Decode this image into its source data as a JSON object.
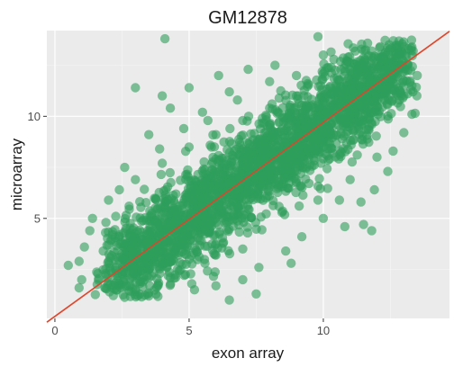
{
  "chart_data": {
    "type": "scatter",
    "title": "GM12878",
    "xlabel": "exon array",
    "ylabel": "microarray",
    "xlim": [
      -0.3,
      14.7
    ],
    "ylim": [
      0.1,
      14.2
    ],
    "x_ticks": [
      0,
      5,
      10
    ],
    "y_ticks": [
      5,
      10
    ],
    "x_tick_labels": [
      "0",
      "5",
      "10"
    ],
    "y_tick_labels": [
      "5",
      "10"
    ],
    "grid": true,
    "background": "#ebebeb",
    "point_color": "#2e9e5b",
    "line_color": "#e0452b",
    "fit_line": {
      "intercept": 0.2,
      "slope": 0.95
    },
    "series": [
      {
        "points": [
          [
            4.1,
            13.8
          ],
          [
            9.8,
            13.9
          ],
          [
            13.3,
            13.4
          ],
          [
            12.9,
            13.2
          ],
          [
            12.2,
            12.9
          ],
          [
            11.5,
            12.6
          ],
          [
            10.8,
            12.2
          ],
          [
            9.9,
            11.5
          ],
          [
            9.0,
            11.0
          ],
          [
            8.0,
            10.4
          ],
          [
            7.0,
            9.8
          ],
          [
            6.0,
            9.1
          ],
          [
            5.0,
            8.5
          ],
          [
            4.0,
            7.7
          ],
          [
            3.0,
            6.9
          ],
          [
            2.4,
            6.4
          ],
          [
            2.0,
            5.9
          ],
          [
            1.4,
            5.0
          ],
          [
            1.9,
            4.8
          ],
          [
            1.3,
            4.4
          ],
          [
            1.1,
            3.6
          ],
          [
            0.9,
            2.9
          ],
          [
            1.8,
            3.4
          ],
          [
            2.3,
            3.1
          ],
          [
            2.6,
            2.7
          ],
          [
            2.9,
            2.3
          ],
          [
            3.2,
            1.9
          ],
          [
            3.9,
            2.3
          ],
          [
            4.5,
            2.1
          ],
          [
            5.1,
            1.8
          ],
          [
            6.0,
            1.7
          ],
          [
            7.0,
            2.0
          ],
          [
            7.6,
            2.6
          ],
          [
            8.6,
            3.4
          ],
          [
            9.2,
            4.1
          ],
          [
            10.0,
            5.0
          ],
          [
            10.6,
            5.9
          ],
          [
            11.5,
            4.7
          ],
          [
            11.4,
            5.8
          ],
          [
            11.9,
            6.4
          ],
          [
            12.4,
            7.3
          ],
          [
            12.6,
            8.3
          ],
          [
            13.0,
            9.2
          ],
          [
            13.3,
            10.1
          ],
          [
            12.8,
            11.4
          ],
          [
            12.2,
            12.4
          ],
          [
            13.5,
            12.0
          ],
          [
            3.0,
            11.4
          ],
          [
            4.3,
            10.4
          ],
          [
            4.0,
            11.0
          ],
          [
            5.0,
            11.4
          ],
          [
            6.1,
            12.0
          ],
          [
            7.2,
            12.3
          ],
          [
            2.0,
            3.7
          ],
          [
            1.6,
            2.3
          ],
          [
            0.5,
            2.7
          ],
          [
            1.0,
            2.0
          ],
          [
            0.9,
            1.6
          ],
          [
            2.3,
            1.5
          ],
          [
            3.5,
            1.2
          ],
          [
            5.2,
            1.5
          ],
          [
            6.5,
            1.0
          ],
          [
            7.5,
            1.3
          ],
          [
            8.8,
            2.8
          ],
          [
            10.8,
            4.6
          ],
          [
            11.8,
            4.4
          ],
          [
            9.0,
            12.0
          ],
          [
            8.2,
            12.5
          ],
          [
            6.5,
            11.2
          ],
          [
            5.5,
            10.2
          ],
          [
            3.5,
            9.1
          ],
          [
            3.9,
            8.4
          ],
          [
            2.6,
            7.5
          ],
          [
            10.9,
            12.7
          ],
          [
            11.8,
            13.2
          ],
          [
            12.8,
            12.7
          ],
          [
            13.0,
            11.0
          ],
          [
            12.0,
            8.0
          ],
          [
            11.0,
            6.9
          ],
          [
            9.8,
            5.9
          ],
          [
            7.0,
            3.5
          ],
          [
            6.0,
            3.2
          ],
          [
            5.0,
            3.0
          ],
          [
            4.0,
            3.4
          ],
          [
            3.0,
            4.0
          ],
          [
            8.0,
            11.7
          ],
          [
            10.0,
            13.0
          ],
          [
            6.8,
            10.8
          ],
          [
            5.7,
            9.8
          ],
          [
            4.8,
            9.4
          ]
        ]
      }
    ]
  }
}
